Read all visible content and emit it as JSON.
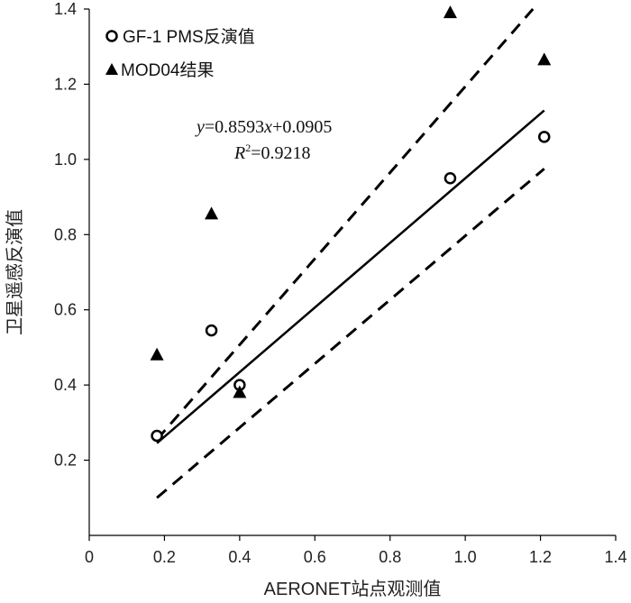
{
  "chart_data": {
    "type": "scatter",
    "title": "",
    "xlabel": "AERONET站点观测值",
    "ylabel": "卫星遥感反演值",
    "xlim": [
      0,
      1.4
    ],
    "ylim": [
      0,
      1.4
    ],
    "x_ticks": [
      0,
      0.2,
      0.4,
      0.6,
      0.8,
      1.0,
      1.2,
      1.4
    ],
    "x_tick_labels": [
      "0",
      "0.2",
      "0.4",
      "0.6",
      "0.8",
      "1.0",
      "1.2",
      "1.4"
    ],
    "y_ticks": [
      0.2,
      0.4,
      0.6,
      0.8,
      1.0,
      1.2,
      1.4
    ],
    "y_tick_labels": [
      "0.2",
      "0.4",
      "0.6",
      "0.8",
      "1.0",
      "1.2",
      "1.4"
    ],
    "legend_position": "top-left",
    "series": [
      {
        "name": "GF-1 PMS反演值",
        "marker": "open-circle",
        "x": [
          0.18,
          0.325,
          0.4,
          0.96,
          1.21
        ],
        "y": [
          0.265,
          0.545,
          0.4,
          0.95,
          1.06
        ]
      },
      {
        "name": "MOD04结果",
        "marker": "filled-triangle",
        "x": [
          0.18,
          0.325,
          0.4,
          0.96,
          1.21
        ],
        "y": [
          0.48,
          0.855,
          0.38,
          1.39,
          1.265
        ]
      }
    ],
    "fit_line": {
      "slope": 0.8593,
      "intercept": 0.0905,
      "x_range": [
        0.18,
        1.21
      ]
    },
    "confidence_lines": [
      {
        "name": "upper",
        "x": [
          0.18,
          1.18
        ],
        "y": [
          0.255,
          1.4
        ]
      },
      {
        "name": "lower",
        "x": [
          0.18,
          1.21
        ],
        "y": [
          0.1,
          0.975
        ]
      }
    ],
    "equation": {
      "y_var": "y",
      "eq_prefix": "=0.8593",
      "x_var": "x",
      "eq_suffix": "+0.0905",
      "r_var": "R",
      "r_sup": "2",
      "r_value": "=0.9218"
    }
  }
}
